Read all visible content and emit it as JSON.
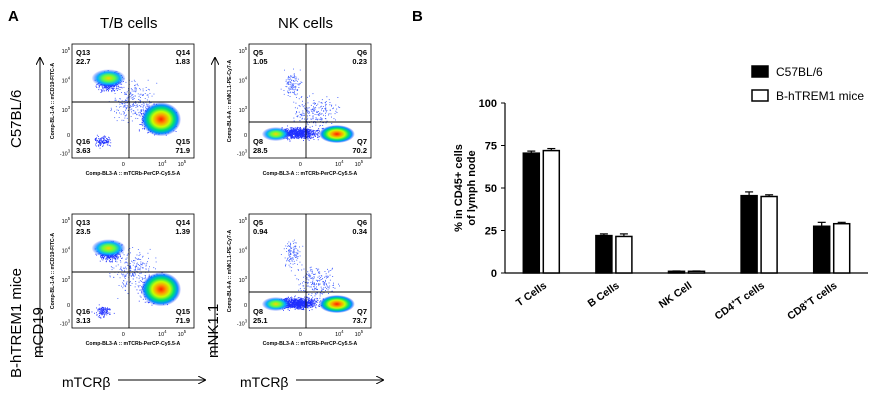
{
  "panel_a": {
    "letter": "A",
    "col_titles": [
      "T/B cells",
      "NK cells"
    ],
    "row_labels": [
      "C57BL/6",
      "B-hTREM1 mice"
    ],
    "y_label_tb": "mCD19",
    "y_label_nk": "mNK1.1",
    "x_label_tb": "mTCRβ",
    "x_label_nk": "mTCRβ",
    "plots": [
      {
        "id": "tb-c57",
        "x_axis": "Comp-BL3-A :: mTCRb-PerCP-Cy5.5-A",
        "y_axis": "Comp-BL-1-A :: mCD19-FITC-A",
        "quadrants": [
          {
            "name": "Q13",
            "value": "22.7"
          },
          {
            "name": "Q14",
            "value": "1.83"
          },
          {
            "name": "Q16",
            "value": "3.63"
          },
          {
            "name": "Q15",
            "value": "71.9"
          }
        ]
      },
      {
        "id": "nk-c57",
        "x_axis": "Comp-BL3-A :: mTCRb-PerCP-Cy5.5-A",
        "y_axis": "Comp-BL4-A :: mNK1.1-PE-Cy7-A",
        "quadrants": [
          {
            "name": "Q5",
            "value": "1.05"
          },
          {
            "name": "Q6",
            "value": "0.23"
          },
          {
            "name": "Q8",
            "value": "28.5"
          },
          {
            "name": "Q7",
            "value": "70.2"
          }
        ]
      },
      {
        "id": "tb-htrem1",
        "x_axis": "Comp-BL3-A :: mTCRb-PerCP-Cy5.5-A",
        "y_axis": "Comp-BL-1-A :: mCD19-FITC-A",
        "quadrants": [
          {
            "name": "Q13",
            "value": "23.5"
          },
          {
            "name": "Q14",
            "value": "1.39"
          },
          {
            "name": "Q16",
            "value": "3.13"
          },
          {
            "name": "Q15",
            "value": "71.9"
          }
        ]
      },
      {
        "id": "nk-htrem1",
        "x_axis": "Comp-BL3-A :: mTCRb-PerCP-Cy5.5-A",
        "y_axis": "Comp-BL4-A :: mNK1.1-PE-Cy7-A",
        "quadrants": [
          {
            "name": "Q5",
            "value": "0.94"
          },
          {
            "name": "Q6",
            "value": "0.34"
          },
          {
            "name": "Q8",
            "value": "25.1"
          },
          {
            "name": "Q7",
            "value": "73.7"
          }
        ]
      }
    ],
    "tick_labels": {
      "y": [
        "10^5",
        "10^4",
        "10^3",
        "0",
        "-10^3"
      ],
      "x": [
        "0",
        "10^4",
        "10^5"
      ]
    }
  },
  "panel_b": {
    "letter": "B",
    "colors": {
      "c57": "#000000",
      "htrem1": "#ffffff",
      "outline": "#000000"
    }
  },
  "chart_data": {
    "type": "bar",
    "title": "",
    "xlabel": "",
    "ylabel": "% in CD45+ cells of lymph node",
    "ylabel_lines": [
      "% in CD45+ cells",
      "of lymph node"
    ],
    "ylim": [
      0,
      100
    ],
    "yticks": [
      "0",
      "25",
      "50",
      "75",
      "100"
    ],
    "categories": [
      "T Cells",
      "B Cells",
      "NK Cell",
      "CD4+T cells",
      "CD8+T cells"
    ],
    "series": [
      {
        "name": "C57BL/6",
        "values": [
          70.5,
          22,
          1,
          45.5,
          27.5
        ],
        "errors": [
          1.2,
          1.0,
          0.2,
          2.2,
          2.3
        ]
      },
      {
        "name": "B-hTREM1 mice",
        "values": [
          72,
          21.5,
          1,
          45,
          29
        ],
        "errors": [
          1.2,
          1.5,
          0.2,
          1.0,
          0.8
        ]
      }
    ],
    "legend": "top-right",
    "grid": false
  }
}
